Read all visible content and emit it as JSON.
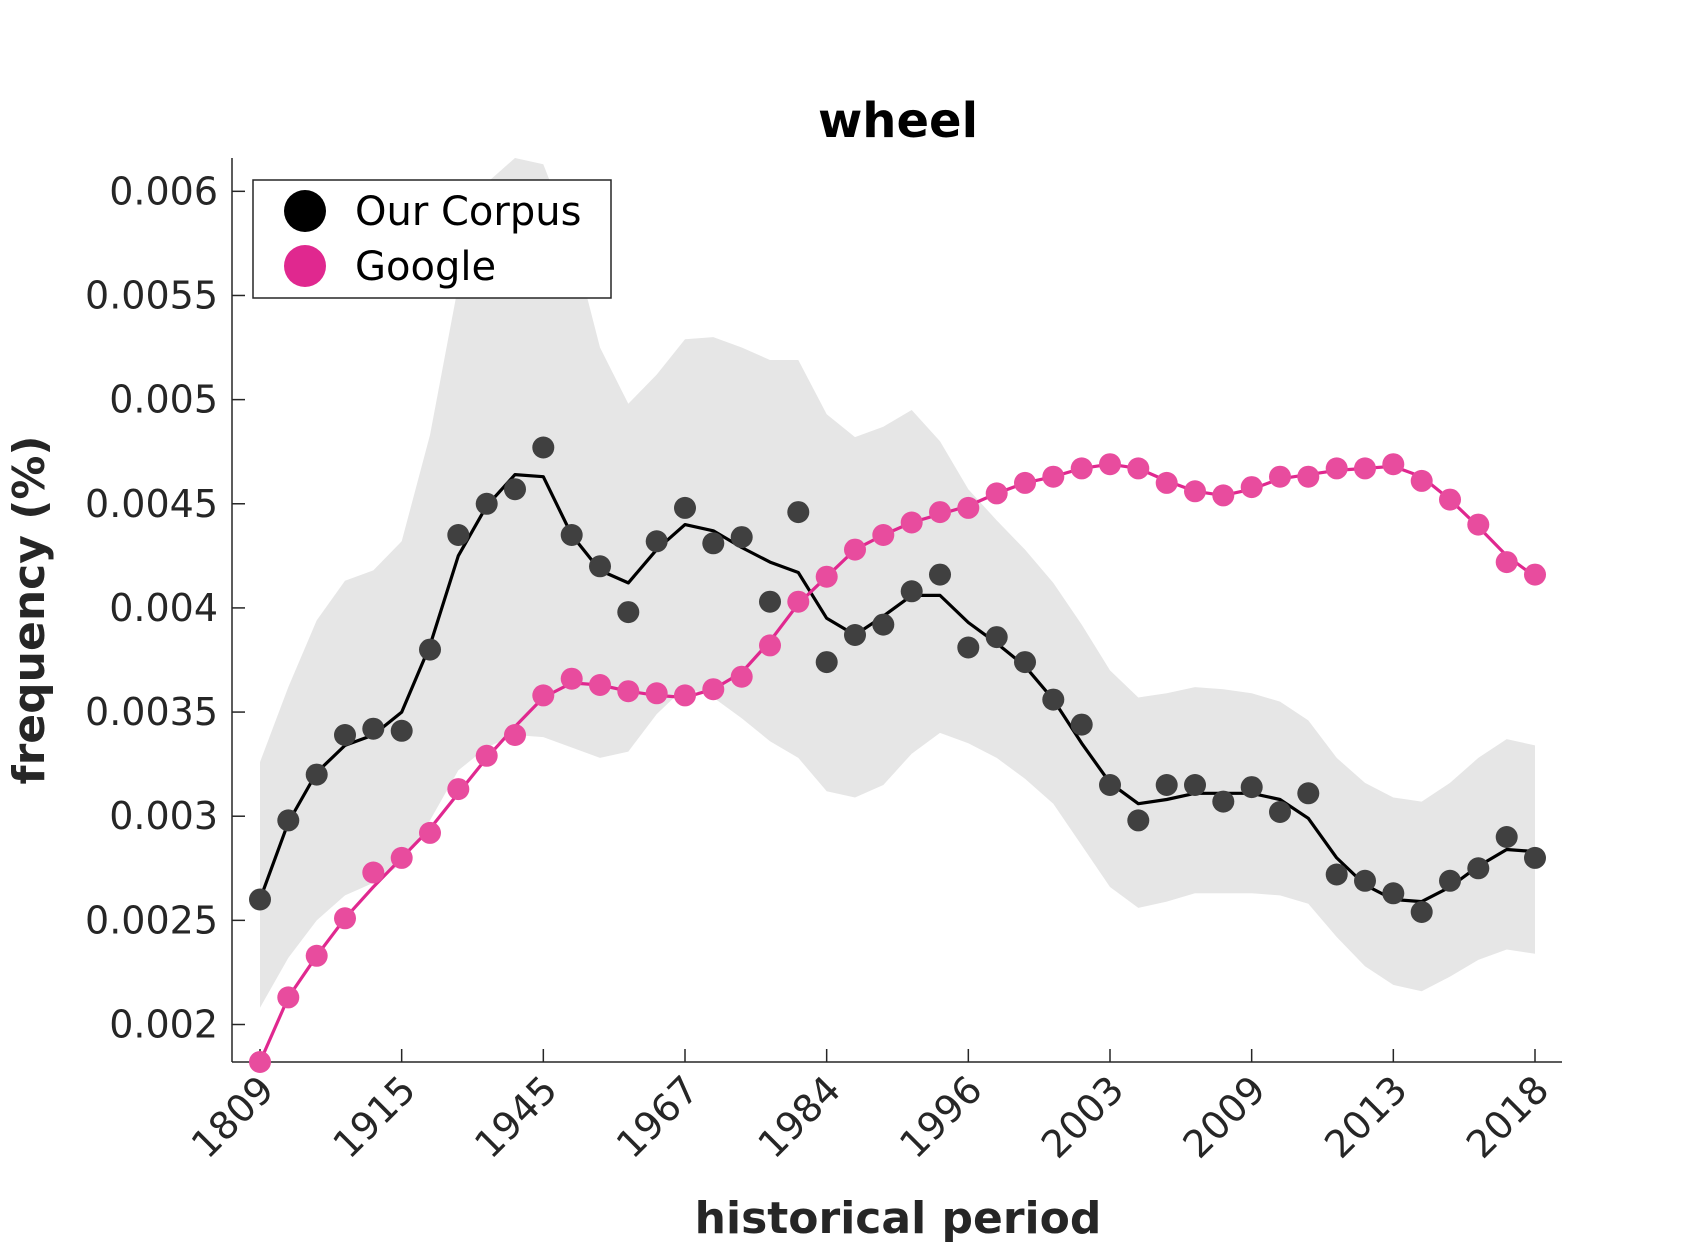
{
  "chart_data": {
    "type": "line",
    "title": "wheel",
    "xlabel": "historical period",
    "ylabel": "frequency (%)",
    "x_tick_labels": [
      "1809",
      "1915",
      "1945",
      "1967",
      "1984",
      "1996",
      "2003",
      "2009",
      "2013",
      "2018"
    ],
    "y_ticks": [
      0.002,
      0.0025,
      0.003,
      0.0035,
      0.004,
      0.0045,
      0.005,
      0.0055,
      0.006
    ],
    "y_tick_labels": [
      "0.002",
      "0.0025",
      "0.003",
      "0.0035",
      "0.004",
      "0.0045",
      "0.005",
      "0.0055",
      "0.006"
    ],
    "ylim": [
      0.00182,
      0.00616
    ],
    "legend_position": "top-left",
    "grid": false,
    "series": [
      {
        "name": "Our Corpus",
        "color": "#000000",
        "marker_color": "#404040",
        "points": [
          0.0026,
          0.00298,
          0.0032,
          0.00339,
          0.00342,
          0.00341,
          0.0038,
          0.00435,
          0.0045,
          0.00457,
          0.00477,
          0.00435,
          0.0042,
          0.00398,
          0.00432,
          0.00448,
          0.00431,
          0.00434,
          0.00403,
          0.00446,
          0.00374,
          0.00387,
          0.00392,
          0.00408,
          0.00416,
          0.00381,
          0.00386,
          0.00374,
          0.00356,
          0.00344,
          0.00315,
          0.00298,
          0.00315,
          0.00315,
          0.00307,
          0.00314,
          0.00302,
          0.00311,
          0.00272,
          0.00269,
          0.00263,
          0.00254,
          0.00269,
          0.00275,
          0.0029,
          0.0028
        ],
        "smoothed": [
          0.0026,
          0.00297,
          0.00321,
          0.00334,
          0.00339,
          0.0035,
          0.00382,
          0.00425,
          0.00449,
          0.00464,
          0.00463,
          0.00435,
          0.00418,
          0.00412,
          0.00428,
          0.0044,
          0.00437,
          0.00429,
          0.00422,
          0.00417,
          0.00395,
          0.00387,
          0.00396,
          0.00406,
          0.00406,
          0.00393,
          0.00383,
          0.00372,
          0.00356,
          0.00335,
          0.00316,
          0.00306,
          0.00308,
          0.00311,
          0.00311,
          0.00311,
          0.00308,
          0.00299,
          0.0028,
          0.00267,
          0.0026,
          0.00259,
          0.00266,
          0.00276,
          0.00284,
          0.00283
        ],
        "band_upper": [
          0.00326,
          0.00362,
          0.00394,
          0.00413,
          0.00418,
          0.00432,
          0.00483,
          0.00555,
          0.00604,
          0.00616,
          0.00613,
          0.00578,
          0.00525,
          0.00498,
          0.00512,
          0.00529,
          0.0053,
          0.00525,
          0.00519,
          0.00519,
          0.00493,
          0.00482,
          0.00487,
          0.00495,
          0.0048,
          0.00457,
          0.00442,
          0.00428,
          0.00412,
          0.00392,
          0.0037,
          0.00357,
          0.00359,
          0.00362,
          0.00361,
          0.00359,
          0.00355,
          0.00346,
          0.00328,
          0.00316,
          0.00309,
          0.00307,
          0.00316,
          0.00328,
          0.00337,
          0.00334
        ],
        "band_lower": [
          0.00208,
          0.00232,
          0.0025,
          0.00262,
          0.00268,
          0.00277,
          0.00298,
          0.00322,
          0.00333,
          0.00339,
          0.00338,
          0.00333,
          0.00328,
          0.00331,
          0.00349,
          0.00362,
          0.00357,
          0.00347,
          0.00336,
          0.00328,
          0.00312,
          0.00309,
          0.00315,
          0.0033,
          0.0034,
          0.00335,
          0.00328,
          0.00318,
          0.00306,
          0.00286,
          0.00266,
          0.00256,
          0.00259,
          0.00263,
          0.00263,
          0.00263,
          0.00262,
          0.00258,
          0.00242,
          0.00228,
          0.00219,
          0.00216,
          0.00223,
          0.00231,
          0.00236,
          0.00234
        ]
      },
      {
        "name": "Google",
        "color": "#e0288f",
        "marker_color": "#e84c9e",
        "points": [
          0.00182,
          0.00213,
          0.00233,
          0.00251,
          0.00273,
          0.0028,
          0.00292,
          0.00313,
          0.00329,
          0.00339,
          0.00358,
          0.00366,
          0.00363,
          0.0036,
          0.00359,
          0.00358,
          0.00361,
          0.00367,
          0.00382,
          0.00403,
          0.00415,
          0.00428,
          0.00435,
          0.00441,
          0.00446,
          0.00448,
          0.00455,
          0.0046,
          0.00463,
          0.00467,
          0.00469,
          0.00467,
          0.0046,
          0.00456,
          0.00454,
          0.00458,
          0.00463,
          0.00463,
          0.00467,
          0.00467,
          0.00469,
          0.00461,
          0.00452,
          0.0044,
          0.00422,
          0.00416
        ],
        "smoothed": [
          0.00182,
          0.00213,
          0.00233,
          0.00251,
          0.00266,
          0.0028,
          0.00294,
          0.00311,
          0.00328,
          0.00343,
          0.00357,
          0.00364,
          0.00363,
          0.0036,
          0.00358,
          0.00357,
          0.00361,
          0.00369,
          0.00384,
          0.00402,
          0.00415,
          0.00428,
          0.00435,
          0.00441,
          0.00445,
          0.00449,
          0.00455,
          0.0046,
          0.00463,
          0.00467,
          0.00469,
          0.00467,
          0.00461,
          0.00456,
          0.00454,
          0.00457,
          0.00462,
          0.00464,
          0.00466,
          0.00467,
          0.00468,
          0.00463,
          0.00452,
          0.00439,
          0.00425,
          0.00415
        ]
      }
    ]
  }
}
